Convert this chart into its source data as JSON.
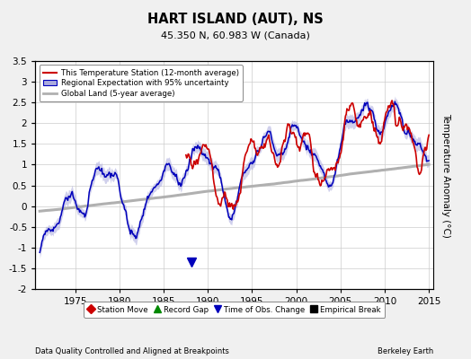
{
  "title": "HART ISLAND (AUT), NS",
  "subtitle": "45.350 N, 60.983 W (Canada)",
  "xlabel_left": "Data Quality Controlled and Aligned at Breakpoints",
  "xlabel_right": "Berkeley Earth",
  "ylabel": "Temperature Anomaly (°C)",
  "xlim": [
    1970.5,
    2015.5
  ],
  "ylim": [
    -2.0,
    3.5
  ],
  "yticks": [
    -2,
    -1.5,
    -1,
    -0.5,
    0,
    0.5,
    1,
    1.5,
    2,
    2.5,
    3,
    3.5
  ],
  "xticks": [
    1975,
    1980,
    1985,
    1990,
    1995,
    2000,
    2005,
    2010,
    2015
  ],
  "background_color": "#f0f0f0",
  "plot_bg_color": "#ffffff",
  "grid_color": "#cccccc",
  "red_color": "#cc0000",
  "blue_color": "#0000bb",
  "blue_fill_color": "#aaaadd",
  "gray_color": "#b0b0b0",
  "legend_items": [
    "This Temperature Station (12-month average)",
    "Regional Expectation with 95% uncertainty",
    "Global Land (5-year average)"
  ],
  "marker_legend": [
    {
      "label": "Station Move",
      "color": "#cc0000",
      "marker": "D"
    },
    {
      "label": "Record Gap",
      "color": "#008800",
      "marker": "^"
    },
    {
      "label": "Time of Obs. Change",
      "color": "#0000bb",
      "marker": "v"
    },
    {
      "label": "Empirical Break",
      "color": "#000000",
      "marker": "s"
    }
  ],
  "obs_change_year": 1988.2,
  "obs_change_val": -1.35
}
